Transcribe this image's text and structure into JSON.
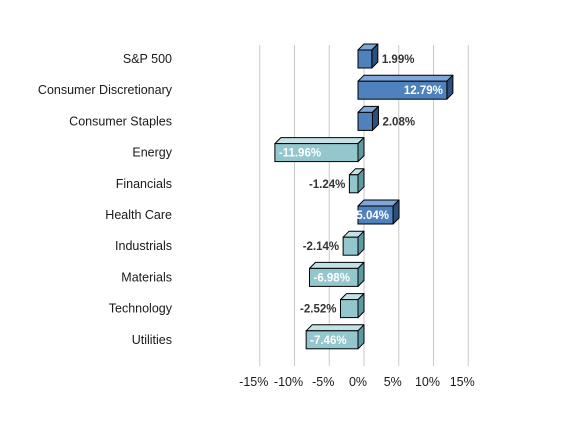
{
  "chart_data": {
    "type": "bar",
    "orientation": "horizontal",
    "categories": [
      "S&P 500",
      "Consumer Discretionary",
      "Consumer Staples",
      "Energy",
      "Financials",
      "Health Care",
      "Industrials",
      "Materials",
      "Technology",
      "Utilities"
    ],
    "values": [
      1.99,
      12.79,
      2.08,
      -11.96,
      -1.24,
      5.04,
      -2.14,
      -6.98,
      -2.52,
      -7.46
    ],
    "value_labels": [
      "1.99%",
      "12.79%",
      "2.08%",
      "-11.96%",
      "-1.24%",
      "5.04%",
      "-2.14%",
      "-6.98%",
      "-2.52%",
      "-7.46%"
    ],
    "xlim": [
      -15,
      15
    ],
    "x_ticks": [
      -15,
      -10,
      -5,
      0,
      5,
      10,
      15
    ],
    "x_tick_labels": [
      "-15%",
      "-10%",
      "-5%",
      "0%",
      "5%",
      "10%",
      "15%"
    ],
    "title": "",
    "xlabel": "",
    "ylabel": "",
    "grid": "vertical",
    "style": "3d-bars",
    "colors": {
      "positive_front": "#4f81bd",
      "positive_side": "#2d4f7c",
      "positive_top": "#7ea7d8",
      "negative_front": "#93c6cd",
      "negative_side": "#5f9aa3",
      "negative_top": "#c2e2e6",
      "outline": "#000000",
      "grid": "#c8c8c8"
    }
  }
}
